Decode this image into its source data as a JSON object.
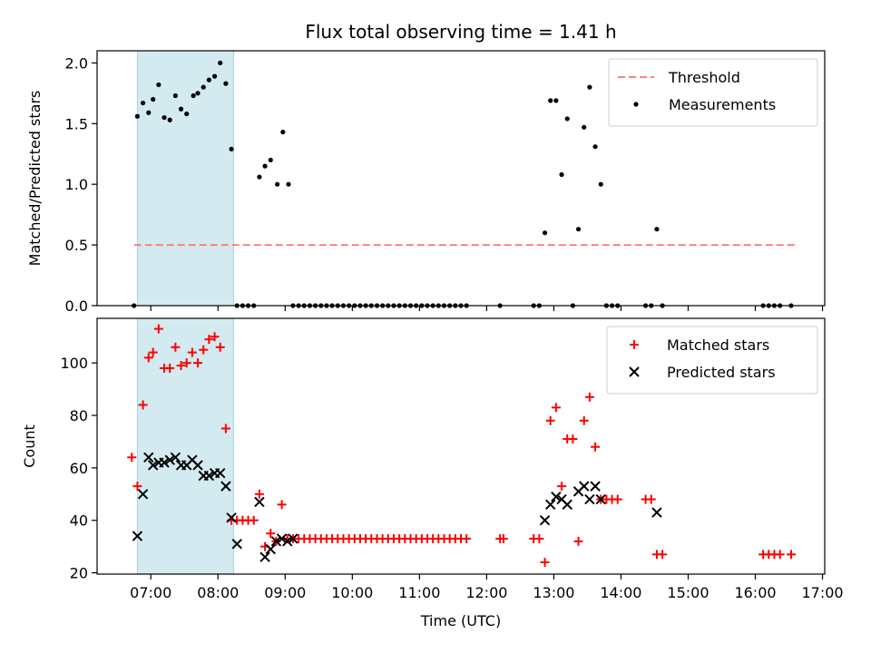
{
  "figure": {
    "title": "Flux total observing time = 1.41 h",
    "xlabel": "Time (UTC)"
  },
  "chart_data": [
    {
      "type": "scatter",
      "ylabel": "Matched/Predicted stars",
      "ylim": [
        0,
        2.1
      ],
      "xlim": [
        "06:12",
        "17:02"
      ],
      "yticks": [
        0.0,
        0.5,
        1.0,
        1.5,
        2.0
      ],
      "ytick_labels": [
        "0.0",
        "0.5",
        "1.0",
        "1.5",
        "2.0"
      ],
      "legend_position": "top-right",
      "shaded_range": [
        "06:48",
        "08:14"
      ],
      "colors": {
        "threshold": "#ff7f7f",
        "measurements": "#000000",
        "shade": "#d3eaf0"
      },
      "threshold": {
        "name": "Threshold",
        "value": 0.5,
        "x_range": [
          "06:45",
          "16:35"
        ]
      },
      "series": [
        {
          "name": "Measurements",
          "points": [
            [
              "06:45",
              0
            ],
            [
              "06:48",
              1.56
            ],
            [
              "06:53",
              1.67
            ],
            [
              "06:58",
              1.59
            ],
            [
              "07:02",
              1.7
            ],
            [
              "07:07",
              1.82
            ],
            [
              "07:12",
              1.55
            ],
            [
              "07:17",
              1.53
            ],
            [
              "07:22",
              1.73
            ],
            [
              "07:27",
              1.62
            ],
            [
              "07:32",
              1.58
            ],
            [
              "07:38",
              1.73
            ],
            [
              "07:42",
              1.75
            ],
            [
              "07:47",
              1.8
            ],
            [
              "07:52",
              1.86
            ],
            [
              "07:57",
              1.89
            ],
            [
              "08:02",
              2.0
            ],
            [
              "08:07",
              1.83
            ],
            [
              "08:12",
              1.29
            ],
            [
              "08:17",
              0
            ],
            [
              "08:22",
              0
            ],
            [
              "08:27",
              0
            ],
            [
              "08:32",
              0
            ],
            [
              "08:37",
              1.06
            ],
            [
              "08:42",
              1.15
            ],
            [
              "08:47",
              1.2
            ],
            [
              "08:53",
              1.0
            ],
            [
              "08:58",
              1.43
            ],
            [
              "09:03",
              1.0
            ],
            [
              "09:07",
              0
            ],
            [
              "09:12",
              0
            ],
            [
              "09:17",
              0
            ],
            [
              "09:22",
              0
            ],
            [
              "09:27",
              0
            ],
            [
              "09:32",
              0
            ],
            [
              "09:37",
              0
            ],
            [
              "09:42",
              0
            ],
            [
              "09:47",
              0
            ],
            [
              "09:52",
              0
            ],
            [
              "09:57",
              0
            ],
            [
              "10:02",
              0
            ],
            [
              "10:07",
              0
            ],
            [
              "10:12",
              0
            ],
            [
              "10:17",
              0
            ],
            [
              "10:22",
              0
            ],
            [
              "10:27",
              0
            ],
            [
              "10:32",
              0
            ],
            [
              "10:37",
              0
            ],
            [
              "10:42",
              0
            ],
            [
              "10:47",
              0
            ],
            [
              "10:52",
              0
            ],
            [
              "10:57",
              0
            ],
            [
              "11:02",
              0
            ],
            [
              "11:07",
              0
            ],
            [
              "11:12",
              0
            ],
            [
              "11:17",
              0
            ],
            [
              "11:22",
              0
            ],
            [
              "11:27",
              0
            ],
            [
              "11:32",
              0
            ],
            [
              "11:37",
              0
            ],
            [
              "11:42",
              0
            ],
            [
              "12:12",
              0
            ],
            [
              "12:42",
              0
            ],
            [
              "12:47",
              0
            ],
            [
              "12:52",
              0.6
            ],
            [
              "12:57",
              1.69
            ],
            [
              "13:02",
              1.69
            ],
            [
              "13:07",
              1.08
            ],
            [
              "13:12",
              1.54
            ],
            [
              "13:17",
              0
            ],
            [
              "13:22",
              0.63
            ],
            [
              "13:27",
              1.47
            ],
            [
              "13:32",
              1.8
            ],
            [
              "13:37",
              1.31
            ],
            [
              "13:42",
              1.0
            ],
            [
              "13:47",
              0
            ],
            [
              "13:52",
              0
            ],
            [
              "13:57",
              0
            ],
            [
              "14:22",
              0
            ],
            [
              "14:27",
              0
            ],
            [
              "14:32",
              0.63
            ],
            [
              "14:37",
              0
            ],
            [
              "16:07",
              0
            ],
            [
              "16:12",
              0
            ],
            [
              "16:17",
              0
            ],
            [
              "16:22",
              0
            ],
            [
              "16:32",
              0
            ]
          ]
        }
      ]
    },
    {
      "type": "scatter",
      "ylabel": "Count",
      "ylim": [
        19.5,
        117
      ],
      "xlim": [
        "06:12",
        "17:02"
      ],
      "yticks": [
        20,
        40,
        60,
        80,
        100
      ],
      "ytick_labels": [
        "20",
        "40",
        "60",
        "80",
        "100"
      ],
      "xticks": [
        "07:00",
        "08:00",
        "09:00",
        "10:00",
        "11:00",
        "12:00",
        "13:00",
        "14:00",
        "15:00",
        "16:00",
        "17:00"
      ],
      "legend_position": "top-right",
      "shaded_range": [
        "06:48",
        "08:14"
      ],
      "colors": {
        "matched": "#ff0000",
        "predicted": "#000000",
        "shade": "#d3eaf0"
      },
      "series": [
        {
          "name": "Matched stars",
          "marker": "plus",
          "points": [
            [
              "06:43",
              64
            ],
            [
              "06:48",
              53
            ],
            [
              "06:53",
              84
            ],
            [
              "06:58",
              102
            ],
            [
              "07:02",
              104
            ],
            [
              "07:07",
              113
            ],
            [
              "07:12",
              98
            ],
            [
              "07:17",
              98
            ],
            [
              "07:22",
              106
            ],
            [
              "07:27",
              99
            ],
            [
              "07:32",
              100
            ],
            [
              "07:37",
              104
            ],
            [
              "07:42",
              100
            ],
            [
              "07:47",
              105
            ],
            [
              "07:52",
              109
            ],
            [
              "07:57",
              110
            ],
            [
              "08:02",
              106
            ],
            [
              "08:07",
              75
            ],
            [
              "08:12",
              40
            ],
            [
              "08:17",
              40
            ],
            [
              "08:22",
              40
            ],
            [
              "08:27",
              40
            ],
            [
              "08:32",
              40
            ],
            [
              "08:37",
              50
            ],
            [
              "08:42",
              30
            ],
            [
              "08:47",
              35
            ],
            [
              "08:52",
              32
            ],
            [
              "08:57",
              46
            ],
            [
              "09:02",
              33
            ],
            [
              "09:07",
              33
            ],
            [
              "09:12",
              33
            ],
            [
              "09:17",
              33
            ],
            [
              "09:22",
              33
            ],
            [
              "09:27",
              33
            ],
            [
              "09:32",
              33
            ],
            [
              "09:37",
              33
            ],
            [
              "09:42",
              33
            ],
            [
              "09:47",
              33
            ],
            [
              "09:52",
              33
            ],
            [
              "09:57",
              33
            ],
            [
              "10:02",
              33
            ],
            [
              "10:07",
              33
            ],
            [
              "10:12",
              33
            ],
            [
              "10:17",
              33
            ],
            [
              "10:22",
              33
            ],
            [
              "10:27",
              33
            ],
            [
              "10:32",
              33
            ],
            [
              "10:37",
              33
            ],
            [
              "10:42",
              33
            ],
            [
              "10:47",
              33
            ],
            [
              "10:52",
              33
            ],
            [
              "10:57",
              33
            ],
            [
              "11:02",
              33
            ],
            [
              "11:07",
              33
            ],
            [
              "11:12",
              33
            ],
            [
              "11:17",
              33
            ],
            [
              "11:22",
              33
            ],
            [
              "11:27",
              33
            ],
            [
              "11:32",
              33
            ],
            [
              "11:37",
              33
            ],
            [
              "11:42",
              33
            ],
            [
              "12:12",
              33
            ],
            [
              "12:15",
              33
            ],
            [
              "12:42",
              33
            ],
            [
              "12:47",
              33
            ],
            [
              "12:52",
              24
            ],
            [
              "12:57",
              78
            ],
            [
              "13:02",
              83
            ],
            [
              "13:07",
              53
            ],
            [
              "13:12",
              71
            ],
            [
              "13:17",
              71
            ],
            [
              "13:22",
              32
            ],
            [
              "13:27",
              78
            ],
            [
              "13:32",
              87
            ],
            [
              "13:37",
              68
            ],
            [
              "13:42",
              48
            ],
            [
              "13:47",
              48
            ],
            [
              "13:52",
              48
            ],
            [
              "13:57",
              48
            ],
            [
              "14:22",
              48
            ],
            [
              "14:27",
              48
            ],
            [
              "14:32",
              27
            ],
            [
              "14:37",
              27
            ],
            [
              "16:07",
              27
            ],
            [
              "16:12",
              27
            ],
            [
              "16:17",
              27
            ],
            [
              "16:22",
              27
            ],
            [
              "16:32",
              27
            ]
          ]
        },
        {
          "name": "Predicted stars",
          "marker": "x",
          "points": [
            [
              "06:48",
              34
            ],
            [
              "06:53",
              50
            ],
            [
              "06:58",
              64
            ],
            [
              "07:02",
              61
            ],
            [
              "07:07",
              62
            ],
            [
              "07:12",
              62
            ],
            [
              "07:17",
              63
            ],
            [
              "07:22",
              64
            ],
            [
              "07:27",
              61
            ],
            [
              "07:32",
              61
            ],
            [
              "07:37",
              63
            ],
            [
              "07:42",
              61
            ],
            [
              "07:47",
              57
            ],
            [
              "07:52",
              57
            ],
            [
              "07:57",
              58
            ],
            [
              "08:02",
              58
            ],
            [
              "08:07",
              53
            ],
            [
              "08:12",
              41
            ],
            [
              "08:17",
              31
            ],
            [
              "08:37",
              47
            ],
            [
              "08:42",
              26
            ],
            [
              "08:47",
              29
            ],
            [
              "08:52",
              32
            ],
            [
              "08:57",
              33
            ],
            [
              "09:02",
              32
            ],
            [
              "09:07",
              33
            ],
            [
              "12:52",
              40
            ],
            [
              "12:57",
              46
            ],
            [
              "13:02",
              49
            ],
            [
              "13:07",
              48
            ],
            [
              "13:12",
              46
            ],
            [
              "13:22",
              51
            ],
            [
              "13:27",
              53
            ],
            [
              "13:32",
              48
            ],
            [
              "13:37",
              53
            ],
            [
              "13:42",
              48
            ],
            [
              "14:32",
              43
            ]
          ]
        }
      ]
    }
  ]
}
